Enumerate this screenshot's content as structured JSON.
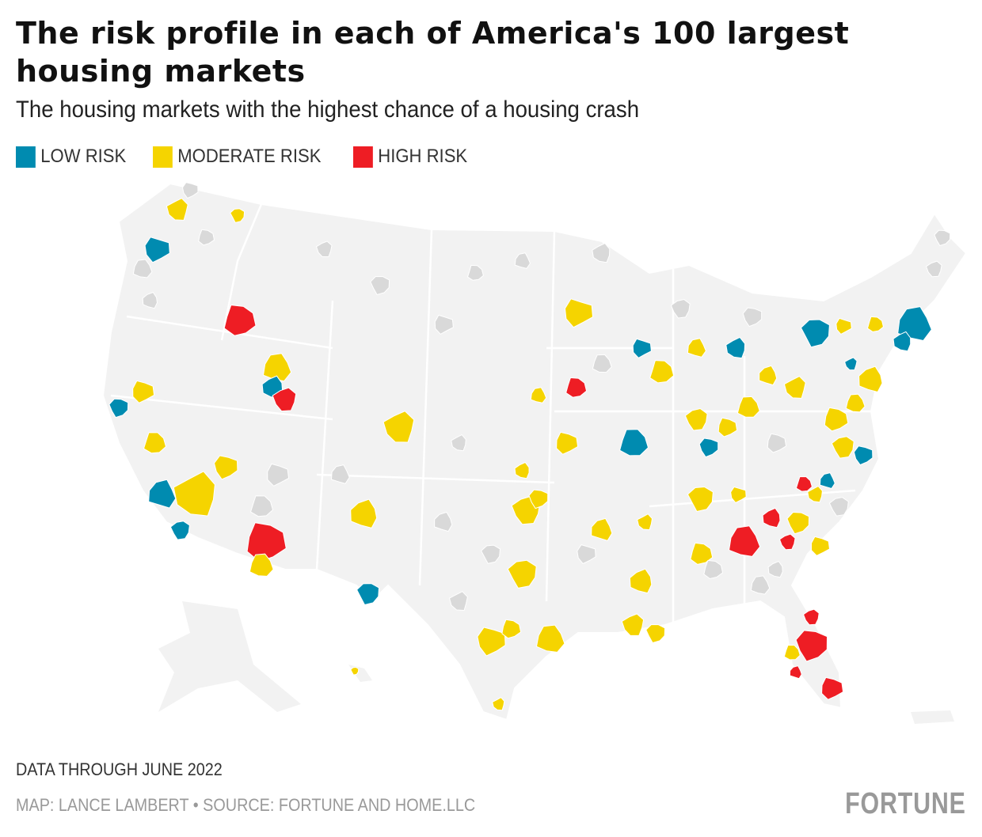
{
  "title": "The risk profile in each of America's 100 largest housing markets",
  "subtitle": "The housing markets with the highest chance of a housing crash",
  "legend": [
    {
      "label": "LOW RISK",
      "color": "#008bb0"
    },
    {
      "label": "MODERATE RISK",
      "color": "#f5d400"
    },
    {
      "label": "HIGH RISK",
      "color": "#ee1d24"
    }
  ],
  "note": "DATA THROUGH JUNE 2022",
  "source": "MAP: LANCE LAMBERT • SOURCE: FORTUNE AND HOME.LLC",
  "logo": "FORTUNE",
  "colors": {
    "land": "#f2f2f2",
    "other_metro": "#d9d9d9",
    "border": "#ffffff"
  }
}
